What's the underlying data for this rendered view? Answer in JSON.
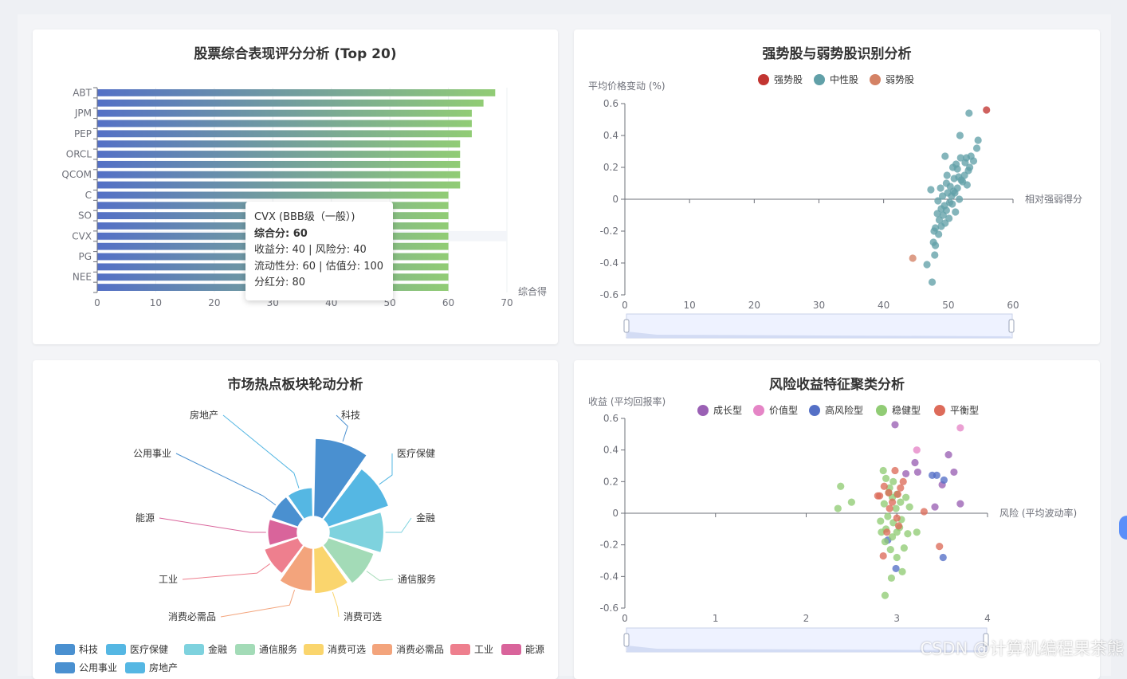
{
  "charts": {
    "score": {
      "title": "股票综合表现评分分析 (Top 20)",
      "axis_name": "综合得"
    },
    "strength": {
      "title": "强势股与弱势股识别分析",
      "yname": "平均价格变动 (%)",
      "xname": "相对强弱得分"
    },
    "sector": {
      "title": "市场热点板块轮动分析"
    },
    "risk": {
      "title": "风险收益特征聚类分析",
      "yname": "收益 (平均回报率)",
      "xname": "风险 (平均波动率)"
    }
  },
  "tooltip": {
    "line1": "CVX (BBB级（一般）)",
    "line2": "综合分: 60",
    "line3": "收益分: 40 | 风险分: 40",
    "line4": "流动性分: 60 | 估值分: 100",
    "line5": "分红分: 80"
  },
  "watermark": "CSDN @计算机编程果茶熊",
  "chart_data": [
    {
      "type": "bar",
      "orientation": "horizontal",
      "title": "股票综合表现评分分析 (Top 20)",
      "xlabel": "综合得",
      "xlim": [
        0,
        70
      ],
      "xticks": [
        0,
        10,
        20,
        30,
        40,
        50,
        60,
        70
      ],
      "visible_category_labels": [
        "ABT",
        "",
        "JPM",
        "",
        "PEP",
        "",
        "ORCL",
        "",
        "QCOM",
        "",
        "C",
        "",
        "SO",
        "",
        "CVX",
        "",
        "PG",
        "",
        "NEE",
        ""
      ],
      "values": [
        68,
        66,
        64,
        64,
        64,
        62,
        62,
        62,
        62,
        62,
        60,
        60,
        60,
        60,
        60,
        60,
        60,
        60,
        60,
        60
      ],
      "highlighted_row": 14,
      "gradient": [
        "#5470c6",
        "#91cc75"
      ]
    },
    {
      "type": "scatter",
      "title": "强势股与弱势股识别分析",
      "xlabel": "相对强弱得分",
      "ylabel": "平均价格变动 (%)",
      "xlim": [
        0,
        60
      ],
      "ylim": [
        -0.6,
        0.6
      ],
      "xticks": [
        0,
        10,
        20,
        30,
        40,
        50,
        60
      ],
      "yticks": [
        -0.6,
        -0.4,
        -0.2,
        0,
        0.2,
        0.4,
        0.6
      ],
      "legend": "top",
      "series": [
        {
          "name": "强势股",
          "color": "#c23531",
          "points": [
            [
              55.9,
              0.56
            ]
          ]
        },
        {
          "name": "中性股",
          "color": "#61a0a8",
          "points": [
            [
              53.2,
              0.54
            ],
            [
              51.8,
              0.4
            ],
            [
              54.6,
              0.37
            ],
            [
              54.4,
              0.32
            ],
            [
              53.5,
              0.27
            ],
            [
              52.8,
              0.26
            ],
            [
              51.9,
              0.26
            ],
            [
              53.9,
              0.24
            ],
            [
              52.6,
              0.23
            ],
            [
              51.2,
              0.22
            ],
            [
              49.5,
              0.27
            ],
            [
              50.7,
              0.2
            ],
            [
              53.1,
              0.18
            ],
            [
              52.5,
              0.15
            ],
            [
              51.6,
              0.14
            ],
            [
              50.9,
              0.13
            ],
            [
              52.2,
              0.11
            ],
            [
              49.7,
              0.1
            ],
            [
              50.3,
              0.08
            ],
            [
              51.4,
              0.07
            ],
            [
              48.8,
              0.07
            ],
            [
              52.9,
              0.09
            ],
            [
              49.9,
              0.04
            ],
            [
              51.0,
              0.04
            ],
            [
              50.5,
              0.02
            ],
            [
              49.1,
              0.02
            ],
            [
              51.7,
              0.0
            ],
            [
              48.4,
              -0.01
            ],
            [
              50.2,
              -0.02
            ],
            [
              49.4,
              -0.04
            ],
            [
              48.9,
              -0.06
            ],
            [
              50.6,
              -0.03
            ],
            [
              49.7,
              -0.07
            ],
            [
              48.3,
              -0.09
            ],
            [
              49.2,
              -0.1
            ],
            [
              50.1,
              -0.12
            ],
            [
              48.6,
              -0.13
            ],
            [
              49.5,
              -0.15
            ],
            [
              48.0,
              -0.18
            ],
            [
              48.9,
              -0.17
            ],
            [
              47.8,
              -0.2
            ],
            [
              48.5,
              -0.22
            ],
            [
              47.7,
              -0.27
            ],
            [
              48.0,
              -0.29
            ],
            [
              47.9,
              -0.35
            ],
            [
              46.7,
              -0.41
            ],
            [
              47.5,
              -0.52
            ],
            [
              52.0,
              0.12
            ],
            [
              51.4,
              0.19
            ],
            [
              49.8,
              0.15
            ],
            [
              53.3,
              0.2
            ],
            [
              50.8,
              0.05
            ],
            [
              47.3,
              0.06
            ],
            [
              51.1,
              -0.08
            ]
          ]
        },
        {
          "name": "弱势股",
          "color": "#d48265",
          "points": [
            [
              44.5,
              -0.37
            ]
          ]
        }
      ]
    },
    {
      "type": "pie",
      "variant": "rose",
      "title": "市场热点板块轮动分析",
      "legend": "bottom",
      "slices": [
        {
          "name": "科技",
          "value": 100,
          "color": "#4a90d0"
        },
        {
          "name": "医疗保健",
          "value": 82,
          "color": "#55b7e3"
        },
        {
          "name": "金融",
          "value": 70,
          "color": "#7ed2de"
        },
        {
          "name": "通信服务",
          "value": 62,
          "color": "#a3dbb7"
        },
        {
          "name": "消费可选",
          "value": 58,
          "color": "#fad56d"
        },
        {
          "name": "消费必需品",
          "value": 55,
          "color": "#f3a47c"
        },
        {
          "name": "工业",
          "value": 46,
          "color": "#ee7f8e"
        },
        {
          "name": "能源",
          "value": 38,
          "color": "#d9649b"
        },
        {
          "name": "公用事业",
          "value": 37,
          "color": "#4a90d0"
        },
        {
          "name": "房地产",
          "value": 37,
          "color": "#55b7e3"
        }
      ]
    },
    {
      "type": "scatter",
      "title": "风险收益特征聚类分析",
      "xlabel": "风险 (平均波动率)",
      "ylabel": "收益 (平均回报率)",
      "xlim": [
        0,
        4
      ],
      "ylim": [
        -0.6,
        0.6
      ],
      "xticks": [
        0,
        1,
        2,
        3,
        4
      ],
      "yticks": [
        -0.6,
        -0.4,
        -0.2,
        0,
        0.2,
        0.4,
        0.6
      ],
      "legend": "top",
      "series": [
        {
          "name": "成长型",
          "color": "#9a60b4",
          "points": [
            [
              2.98,
              0.56
            ],
            [
              3.57,
              0.37
            ],
            [
              3.63,
              0.26
            ],
            [
              3.2,
              0.32
            ],
            [
              3.1,
              0.25
            ],
            [
              3.5,
              0.18
            ],
            [
              3.7,
              0.06
            ],
            [
              3.42,
              0.04
            ],
            [
              3.23,
              0.26
            ]
          ]
        },
        {
          "name": "价值型",
          "color": "#e585c6",
          "points": [
            [
              3.7,
              0.54
            ],
            [
              3.22,
              0.4
            ]
          ]
        },
        {
          "name": "高风险型",
          "color": "#5470c6",
          "points": [
            [
              3.39,
              0.24
            ],
            [
              3.52,
              0.21
            ],
            [
              2.9,
              -0.17
            ],
            [
              2.99,
              -0.35
            ],
            [
              3.51,
              -0.28
            ],
            [
              3.44,
              0.24
            ]
          ]
        },
        {
          "name": "稳健型",
          "color": "#91cc75",
          "points": [
            [
              2.38,
              0.17
            ],
            [
              2.35,
              0.03
            ],
            [
              2.5,
              0.07
            ],
            [
              2.85,
              0.27
            ],
            [
              2.88,
              0.22
            ],
            [
              2.92,
              0.16
            ],
            [
              2.95,
              0.1
            ],
            [
              2.86,
              0.06
            ],
            [
              3.0,
              0.12
            ],
            [
              3.04,
              0.07
            ],
            [
              3.1,
              0.1
            ],
            [
              2.99,
              0.03
            ],
            [
              2.9,
              -0.02
            ],
            [
              2.96,
              -0.06
            ],
            [
              3.05,
              -0.04
            ],
            [
              2.88,
              -0.1
            ],
            [
              2.83,
              -0.12
            ],
            [
              2.95,
              -0.15
            ],
            [
              3.0,
              -0.12
            ],
            [
              3.12,
              -0.13
            ],
            [
              3.22,
              -0.12
            ],
            [
              2.87,
              -0.18
            ],
            [
              2.93,
              -0.23
            ],
            [
              3.08,
              -0.22
            ],
            [
              3.0,
              -0.28
            ],
            [
              2.94,
              -0.41
            ],
            [
              3.06,
              -0.37
            ],
            [
              2.87,
              -0.52
            ],
            [
              2.96,
              0.2
            ],
            [
              3.14,
              0.04
            ],
            [
              2.82,
              -0.05
            ],
            [
              2.91,
              0.13
            ],
            [
              3.03,
              -0.09
            ]
          ]
        },
        {
          "name": "平衡型",
          "color": "#dd6b5a",
          "points": [
            [
              2.81,
              0.11
            ],
            [
              2.86,
              0.17
            ],
            [
              2.91,
              0.13
            ],
            [
              2.95,
              0.07
            ],
            [
              3.01,
              0.12
            ],
            [
              3.07,
              0.2
            ],
            [
              2.98,
              0.27
            ],
            [
              3.04,
              0.16
            ],
            [
              2.92,
              0.03
            ],
            [
              3.0,
              -0.03
            ],
            [
              3.02,
              -0.08
            ],
            [
              2.89,
              -0.12
            ],
            [
              3.3,
              0.01
            ],
            [
              3.47,
              -0.21
            ],
            [
              2.85,
              -0.27
            ],
            [
              2.79,
              0.11
            ]
          ]
        }
      ]
    }
  ]
}
